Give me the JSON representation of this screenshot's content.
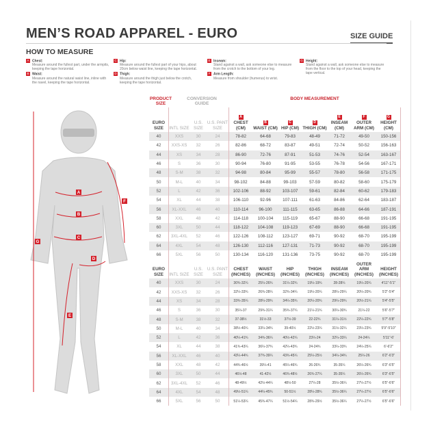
{
  "title": "MEN’S ROAD APPAREL - EURO",
  "size_guide": "SIZE GUIDE",
  "how_to_measure": {
    "heading": "HOW TO MEASURE",
    "items": [
      {
        "letter": "A",
        "label": "Chest:",
        "text": "Measure around the fullest part, under the armpits, keeping the tape horizontal."
      },
      {
        "letter": "B",
        "label": "Waist:",
        "text": "Measure around the natural waist line, inline with the navel, keeping the tape horizontal."
      },
      {
        "letter": "C",
        "label": "Hip:",
        "text": "Measure around the fullest part of your hips, about 20cm below waist line, keeping the tape horizontal."
      },
      {
        "letter": "D",
        "label": "Thigh:",
        "text": "Measure around the thigh just below the crotch, keeping the tape horizontal."
      },
      {
        "letter": "E",
        "label": "Inseam:",
        "text": "Stand against a wall, ask someone else to measure from the crotch to the bottom of your leg."
      },
      {
        "letter": "F",
        "label": "Arm Length:",
        "text": "Measure from shoulder (humerus) to wrist."
      },
      {
        "letter": "G",
        "label": "Height:",
        "text": "Stand against a wall, ask someone else to measure from the floor to the top of your head, keeping the tape vertical."
      }
    ]
  },
  "figure_labels": [
    "A",
    "B",
    "C",
    "D",
    "E",
    "F",
    "G"
  ],
  "colors": {
    "accent": "#d4202a",
    "row_alt": "#e9e9e9"
  },
  "table": {
    "product_size": "PRODUCT SIZE",
    "conversion_guide": "CONVERSION GUIDE",
    "body_measurement": "BODY MEASUREMENT",
    "cm_headers": [
      "EURO SIZE",
      "INTL SIZE",
      "U.S. SIZE",
      "U.S. PANT SIZE",
      "CHEST (CM)",
      "WAIST (CM)",
      "HIP (CM)",
      "THIGH (CM)",
      "INSEAM (CM)",
      "OUTER ARM (CM)",
      "HEIGHT (CM)"
    ],
    "in_headers": [
      "EURO SIZE",
      "INTL SIZE",
      "U.S. SIZE",
      "U.S. PANT SIZE",
      "CHEST (INCHES)",
      "WAIST (INCHES)",
      "HIP (INCHES)",
      "THIGH (INCHES)",
      "INSEAM (INCHES)",
      "OUTER ARM (INCHES)",
      "HEIGHT (INCHES)"
    ],
    "letters": [
      "A",
      "B",
      "C",
      "D",
      "E",
      "F",
      "G"
    ],
    "cm_rows": [
      [
        "40",
        "XXS",
        "30",
        "24",
        "78-82",
        "64-68",
        "79-83",
        "48-49",
        "71-72",
        "49-50",
        "150-156"
      ],
      [
        "42",
        "XXS-XS",
        "32",
        "26",
        "82-86",
        "68-72",
        "83-87",
        "49-51",
        "72-74",
        "50-52",
        "156-163"
      ],
      [
        "44",
        "XS",
        "34",
        "28",
        "86-90",
        "72-76",
        "87-91",
        "51-53",
        "74-76",
        "52-54",
        "163-167"
      ],
      [
        "46",
        "S",
        "36",
        "30",
        "90-94",
        "76-80",
        "91-95",
        "53-55",
        "76-78",
        "54-56",
        "167-171"
      ],
      [
        "48",
        "S-M",
        "38",
        "32",
        "94-98",
        "80-84",
        "95-99",
        "55-57",
        "78-80",
        "56-58",
        "171-175"
      ],
      [
        "50",
        "M-L",
        "40",
        "34",
        "98-102",
        "84-88",
        "99-103",
        "57-59",
        "80-82",
        "58-60",
        "175-179"
      ],
      [
        "52",
        "L",
        "42",
        "36",
        "102-106",
        "88-92",
        "103-107",
        "59-61",
        "82-84",
        "60-62",
        "179-183"
      ],
      [
        "54",
        "XL",
        "44",
        "38",
        "106-110",
        "92-96",
        "107-111",
        "61-63",
        "84-86",
        "62-64",
        "183-187"
      ],
      [
        "56",
        "XL-XXL",
        "46",
        "40",
        "110-114",
        "96-100",
        "111-115",
        "63-65",
        "86-88",
        "64-66",
        "187-191"
      ],
      [
        "58",
        "XXL",
        "48",
        "42",
        "114-118",
        "100-104",
        "115-119",
        "65-67",
        "88-90",
        "66-68",
        "191-195"
      ],
      [
        "60",
        "3XL",
        "50",
        "44",
        "118-122",
        "104-108",
        "119-123",
        "67-69",
        "88-90",
        "66-68",
        "191-195"
      ],
      [
        "62",
        "3XL-4XL",
        "52",
        "46",
        "122-126",
        "108-112",
        "123-127",
        "69-71",
        "90-92",
        "68-70",
        "195-199"
      ],
      [
        "64",
        "4XL",
        "54",
        "48",
        "126-130",
        "112-116",
        "127-131",
        "71-73",
        "90-92",
        "68-70",
        "195-199"
      ],
      [
        "66",
        "5XL",
        "56",
        "50",
        "130-134",
        "116-120",
        "131-136",
        "73-75",
        "90-92",
        "68-70",
        "195-199"
      ]
    ],
    "in_rows": [
      [
        "40",
        "XXS",
        "30",
        "24",
        "30¾-32¼",
        "25¼-26¾",
        "31¼-32¾",
        "19¼-19¾",
        "28-28¼",
        "19¼-20¼",
        "4'11\"-5'1\""
      ],
      [
        "42",
        "XXS-XS",
        "32",
        "26",
        "32¼-33¾",
        "26¾-28¼",
        "32¾-34¼",
        "19¼-20¼",
        "28¼-29¼",
        "20¼-20¾",
        "5'2\"-5'4\""
      ],
      [
        "44",
        "XS",
        "34",
        "28",
        "33¾-35¼",
        "28¼-29¾",
        "34¼-35¾",
        "20¼-20¾",
        "29¼-29¾",
        "20½-21¼",
        "5'4\"-5'5\""
      ],
      [
        "46",
        "S",
        "36",
        "30",
        "35¼-37",
        "29¾-31¼",
        "35¾-37¼",
        "21¼-21¾",
        "30¼-30¾",
        "21¼-22",
        "5'6\"-5'7\""
      ],
      [
        "48",
        "S-M",
        "38",
        "32",
        "37-38½",
        "31½-33",
        "37½-39",
        "22-22¾",
        "31¼-31½",
        "22¼-22¾",
        "5'7\"-5'8\""
      ],
      [
        "50",
        "M-L",
        "40",
        "34",
        "38½-40¼",
        "33¼-34¾",
        "39-40½",
        "22½-23¼",
        "31½-32¼",
        "23¼-23¾",
        "5'9\"-5'10\""
      ],
      [
        "52",
        "L",
        "42",
        "36",
        "40¼-41¾",
        "34¾-36¼",
        "40½-42¼",
        "23¼-24",
        "32¼-33¼",
        "24-24¼",
        "5'11\"-6'"
      ],
      [
        "54",
        "XL",
        "44",
        "38",
        "41¾-43¼",
        "36¼-37¾",
        "42¼-43¾",
        "24-24¾",
        "33¼-33¾",
        "24¼-25¼",
        "6'-6'2\""
      ],
      [
        "56",
        "XL-XXL",
        "46",
        "40",
        "43¼-44¾",
        "37¾-39¼",
        "43¾-45¼",
        "25¼-25½",
        "34¼-34¾",
        "25¼-26",
        "6'2\"-6'3\""
      ],
      [
        "58",
        "XXL",
        "48",
        "42",
        "44¾-46½",
        "39¼-41",
        "45¼-46¾",
        "26-26¾",
        "35-35¼",
        "26¼-26¾",
        "6'3\"-6'5\""
      ],
      [
        "60",
        "3XL",
        "50",
        "44",
        "46½-48",
        "41-42½",
        "46¾-48½",
        "26¾-27¼",
        "35-35¼",
        "26¼-26¾",
        "6'3\"-6'5\""
      ],
      [
        "62",
        "3XL-4XL",
        "52",
        "46",
        "48-49½",
        "42½-44¼",
        "48½-50",
        "27¼-28",
        "35½-36¼",
        "27¼-27½",
        "6'5\"-6'6\""
      ],
      [
        "64",
        "4XL",
        "54",
        "48",
        "49½-51¼",
        "44¼-45¾",
        "50-51½",
        "28¼-28¾",
        "35½-36¼",
        "27¼-27½",
        "6'5\"-6'6\""
      ],
      [
        "66",
        "5XL",
        "56",
        "50",
        "51¼-53¼",
        "45¾-47¼",
        "51½-54¼",
        "28¾-29½",
        "35½-36¼",
        "27¼-27½",
        "6'5\"-6'6\""
      ]
    ]
  }
}
